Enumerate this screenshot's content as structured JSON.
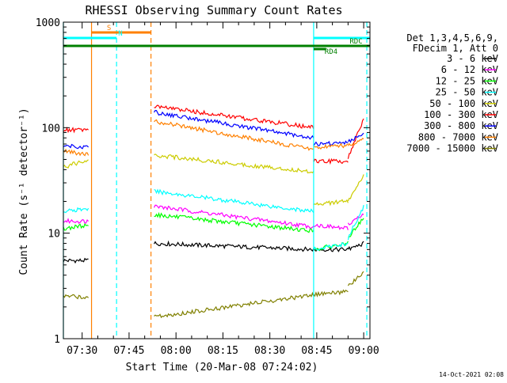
{
  "chart_data": {
    "type": "line",
    "title": "RHESSI Observing Summary Count Rates",
    "xlabel": "Start Time (20-Mar-08 07:24:02)",
    "ylabel": "Count Rate (s⁻¹ detector⁻¹)",
    "yscale": "log",
    "ylim": [
      1,
      1000
    ],
    "xlim": [
      "07:24",
      "09:02"
    ],
    "x_ticks": [
      "07:30",
      "07:45",
      "08:00",
      "08:15",
      "08:30",
      "08:45",
      "09:00"
    ],
    "y_ticks": [
      "1",
      "10",
      "100",
      "1000"
    ],
    "grid": false,
    "legend_position": "right",
    "legend_header": [
      "Det 1,3,4,5,6,9,",
      "FDecim 1, Att 0"
    ],
    "footer_date": "14-Oct-2021 02:08",
    "colors": {
      "3-6": "#000000",
      "6-12": "#ff00ff",
      "12-25": "#00ff00",
      "25-50": "#00ffff",
      "50-100": "#cccc00",
      "100-300": "#ff0000",
      "300-800": "#0000ff",
      "800-7000": "#ff8000",
      "7000-15000": "#808000",
      "cyan_lines": "#00ffff",
      "orange_lines": "#ff8000",
      "flag_green": "#008000"
    },
    "segments": [
      [
        "07:24",
        "07:32"
      ],
      [
        "07:53",
        "08:44"
      ],
      [
        "08:44",
        "08:55"
      ],
      [
        "08:55",
        "09:00"
      ]
    ],
    "series": [
      {
        "name": "3 - 6 keV",
        "color": "#000000",
        "values": [
          [
            5.5,
            5.5
          ],
          [
            8,
            7
          ],
          [
            7,
            7
          ],
          [
            7,
            8
          ]
        ]
      },
      {
        "name": "6 - 12 keV",
        "color": "#ff00ff",
        "values": [
          [
            13,
            13
          ],
          [
            18,
            11.5
          ],
          [
            12,
            11
          ],
          [
            12,
            15
          ]
        ]
      },
      {
        "name": "12 - 25 keV",
        "color": "#00ff00",
        "values": [
          [
            11,
            12
          ],
          [
            15,
            10.5
          ],
          [
            7,
            8
          ],
          [
            9,
            14
          ]
        ]
      },
      {
        "name": "25 - 50 keV",
        "color": "#00ffff",
        "values": [
          [
            16,
            17
          ],
          [
            25,
            16
          ],
          [
            7,
            8
          ],
          [
            9,
            18
          ]
        ]
      },
      {
        "name": "50 - 100 keV",
        "color": "#cccc00",
        "values": [
          [
            42,
            50
          ],
          [
            55,
            38
          ],
          [
            19,
            20
          ],
          [
            20,
            35
          ]
        ]
      },
      {
        "name": "100 - 300 keV",
        "color": "#ff0000",
        "values": [
          [
            95,
            95
          ],
          [
            160,
            100
          ],
          [
            48,
            48
          ],
          [
            52,
            120
          ]
        ]
      },
      {
        "name": "300 - 800 keV",
        "color": "#0000ff",
        "values": [
          [
            68,
            65
          ],
          [
            140,
            80
          ],
          [
            70,
            72
          ],
          [
            75,
            85
          ]
        ]
      },
      {
        "name": "800 - 7000 keV",
        "color": "#ff8000",
        "values": [
          [
            60,
            55
          ],
          [
            115,
            62
          ],
          [
            65,
            68
          ],
          [
            68,
            78
          ]
        ]
      },
      {
        "name": "7000 - 15000 keV",
        "color": "#808000",
        "values": [
          [
            2.5,
            2.5
          ],
          [
            1.6,
            2.6
          ],
          [
            2.6,
            2.8
          ],
          [
            3.2,
            4.2
          ]
        ]
      }
    ],
    "vertical_lines": [
      {
        "x": "07:24",
        "color": "#00ffff",
        "style": "solid"
      },
      {
        "x": "07:33",
        "color": "#ff8000",
        "style": "solid"
      },
      {
        "x": "07:41",
        "color": "#00ffff",
        "style": "dashed"
      },
      {
        "x": "07:52",
        "color": "#ff8000",
        "style": "dashed"
      },
      {
        "x": "08:44",
        "color": "#00ffff",
        "style": "solid"
      },
      {
        "x": "09:01",
        "color": "#00ffff",
        "style": "dashed"
      }
    ],
    "flag_bars": [
      {
        "label": "S",
        "color": "#ff8000",
        "x": [
          "07:33",
          "07:52"
        ],
        "level": 0
      },
      {
        "label": "N",
        "color": "#00ffff",
        "x": [
          "07:24",
          "07:41"
        ],
        "level": 1
      },
      {
        "label": "",
        "color": "#00ffff",
        "x": [
          "08:44",
          "09:02"
        ],
        "level": 1
      },
      {
        "label": "",
        "color": "#008000",
        "x": [
          "07:24",
          "09:02"
        ],
        "level": 2
      },
      {
        "label": "RD4",
        "color": "#008000",
        "x": [
          "08:44",
          "08:48"
        ],
        "level": 3
      },
      {
        "label": "RDC",
        "color": "#008000",
        "x": [
          "08:52",
          "08:59"
        ],
        "level": 2
      }
    ]
  }
}
